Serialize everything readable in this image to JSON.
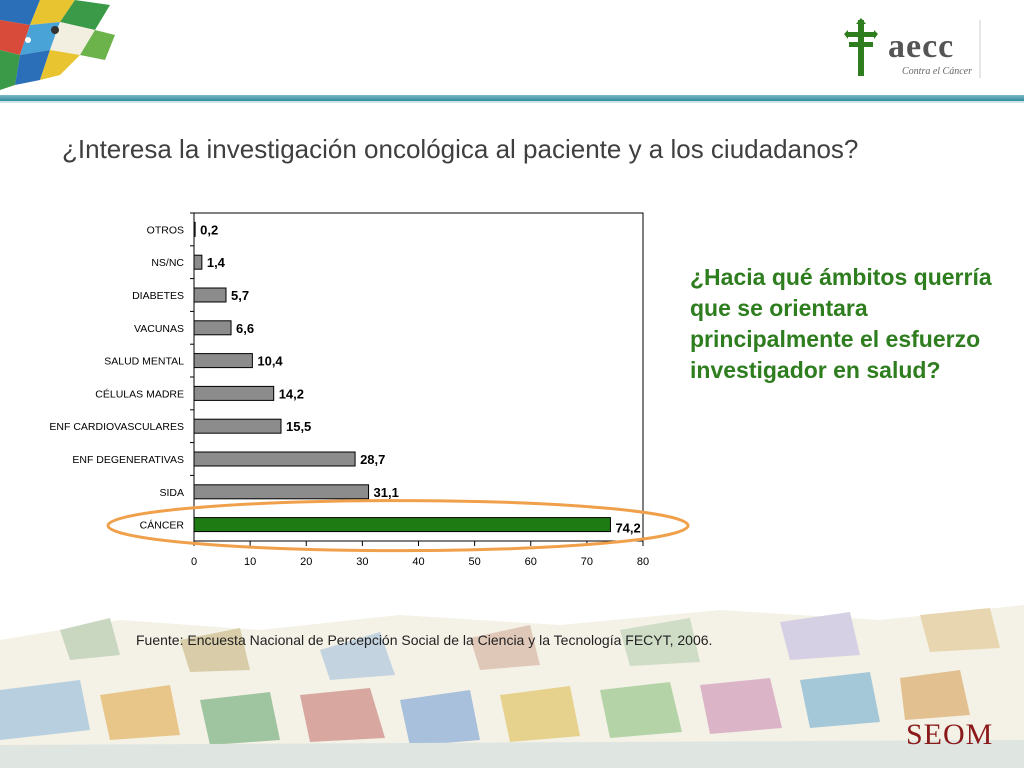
{
  "header": {
    "logo_text": "aecc",
    "logo_subtitle": "Contra el Cáncer",
    "logo_icon": "cross-icon"
  },
  "title": "¿Interesa la investigación oncológica al paciente y a los ciudadanos?",
  "question": "¿Hacia qué ámbitos querría que se orientara principalmente el esfuerzo investigador en salud?",
  "source": "Fuente: Encuesta Nacional de Percepción Social de la Ciencia y la Tecnología FECYT, 2006.",
  "footer": {
    "brand": "SEOM"
  },
  "colors": {
    "bar_default": "#8c8c8c",
    "bar_highlight": "#1e7a12",
    "highlight_ellipse": "#f0a04b",
    "question_text": "#2e7d1e"
  },
  "chart_data": {
    "type": "bar",
    "orientation": "horizontal",
    "categories": [
      "OTROS",
      "NS/NC",
      "DIABETES",
      "VACUNAS",
      "SALUD MENTAL",
      "CÉLULAS MADRE",
      "ENF CARDIOVASCULARES",
      "ENF DEGENERATIVAS",
      "SIDA",
      "CÁNCER"
    ],
    "values": [
      0.2,
      1.4,
      5.7,
      6.6,
      10.4,
      14.2,
      15.5,
      28.7,
      31.1,
      74.2
    ],
    "value_labels": [
      "0,2",
      "1,4",
      "5,7",
      "6,6",
      "10,4",
      "14,2",
      "15,5",
      "28,7",
      "31,1",
      "74,2"
    ],
    "highlight": "CÁNCER",
    "xlim": [
      0,
      80
    ],
    "xticks": [
      0,
      10,
      20,
      30,
      40,
      50,
      60,
      70,
      80
    ],
    "grid": false,
    "legend": "none"
  }
}
